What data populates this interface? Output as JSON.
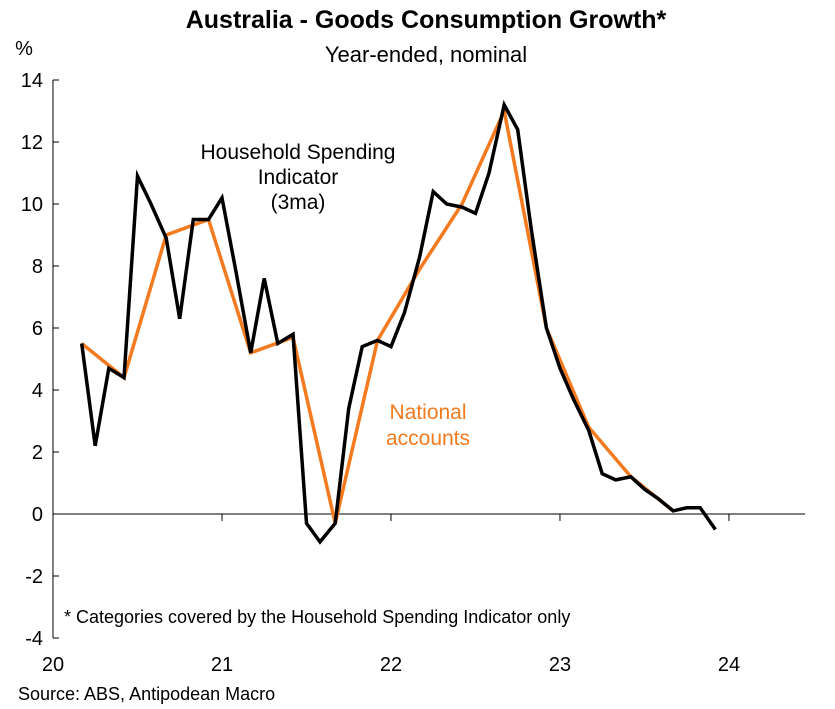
{
  "chart_data": {
    "type": "line",
    "title": "Australia - Goods Consumption Growth*",
    "subtitle": "Year-ended, nominal",
    "ylabel": "%",
    "xlabel": "",
    "ylim": [
      -4,
      14
    ],
    "xlim": [
      20.0,
      24.45
    ],
    "yticks": [
      -4,
      -2,
      0,
      2,
      4,
      6,
      8,
      10,
      12,
      14
    ],
    "xticks": [
      "20",
      "21",
      "22",
      "23",
      "24"
    ],
    "grid": false,
    "colors": {
      "hsi": "#000000",
      "na": "#F47A1F"
    },
    "series": [
      {
        "key": "na",
        "name": "National accounts",
        "x": [
          20.17,
          20.42,
          20.67,
          20.92,
          21.17,
          21.42,
          21.67,
          21.92,
          22.17,
          22.42,
          22.67,
          22.92,
          23.17,
          23.42,
          23.67
        ],
        "y": [
          5.5,
          4.4,
          9.0,
          9.5,
          5.2,
          5.7,
          -0.3,
          5.6,
          7.9,
          10.0,
          13.0,
          6.0,
          2.8,
          1.2,
          0.1
        ]
      },
      {
        "key": "hsi",
        "name": "Household Spending Indicator (3ma)",
        "x": [
          20.17,
          20.25,
          20.33,
          20.42,
          20.5,
          20.58,
          20.67,
          20.75,
          20.83,
          20.92,
          21.0,
          21.08,
          21.17,
          21.25,
          21.33,
          21.42,
          21.5,
          21.58,
          21.67,
          21.75,
          21.83,
          21.92,
          22.0,
          22.08,
          22.17,
          22.25,
          22.33,
          22.42,
          22.5,
          22.58,
          22.67,
          22.75,
          22.83,
          22.92,
          23.0,
          23.08,
          23.17,
          23.25,
          23.33,
          23.42,
          23.5,
          23.58,
          23.67,
          23.75,
          23.83,
          23.92
        ],
        "y": [
          5.5,
          2.2,
          4.7,
          4.4,
          10.9,
          10.0,
          8.9,
          6.3,
          9.5,
          9.5,
          10.2,
          7.9,
          5.2,
          7.6,
          5.5,
          5.8,
          -0.3,
          -0.9,
          -0.3,
          3.4,
          5.4,
          5.6,
          5.4,
          6.5,
          8.3,
          10.4,
          10.0,
          9.9,
          9.7,
          11.0,
          13.2,
          12.4,
          9.2,
          6.0,
          4.7,
          3.7,
          2.7,
          1.3,
          1.1,
          1.2,
          0.8,
          0.5,
          0.1,
          0.2,
          0.2,
          -0.5
        ]
      }
    ],
    "annotations": {
      "hsi_label": [
        "Household Spending",
        "Indicator",
        "(3ma)"
      ],
      "na_label": [
        "National",
        "accounts"
      ]
    },
    "footnote": "* Categories covered by the Household Spending Indicator only",
    "source": "Source: ABS, Antipodean Macro"
  }
}
